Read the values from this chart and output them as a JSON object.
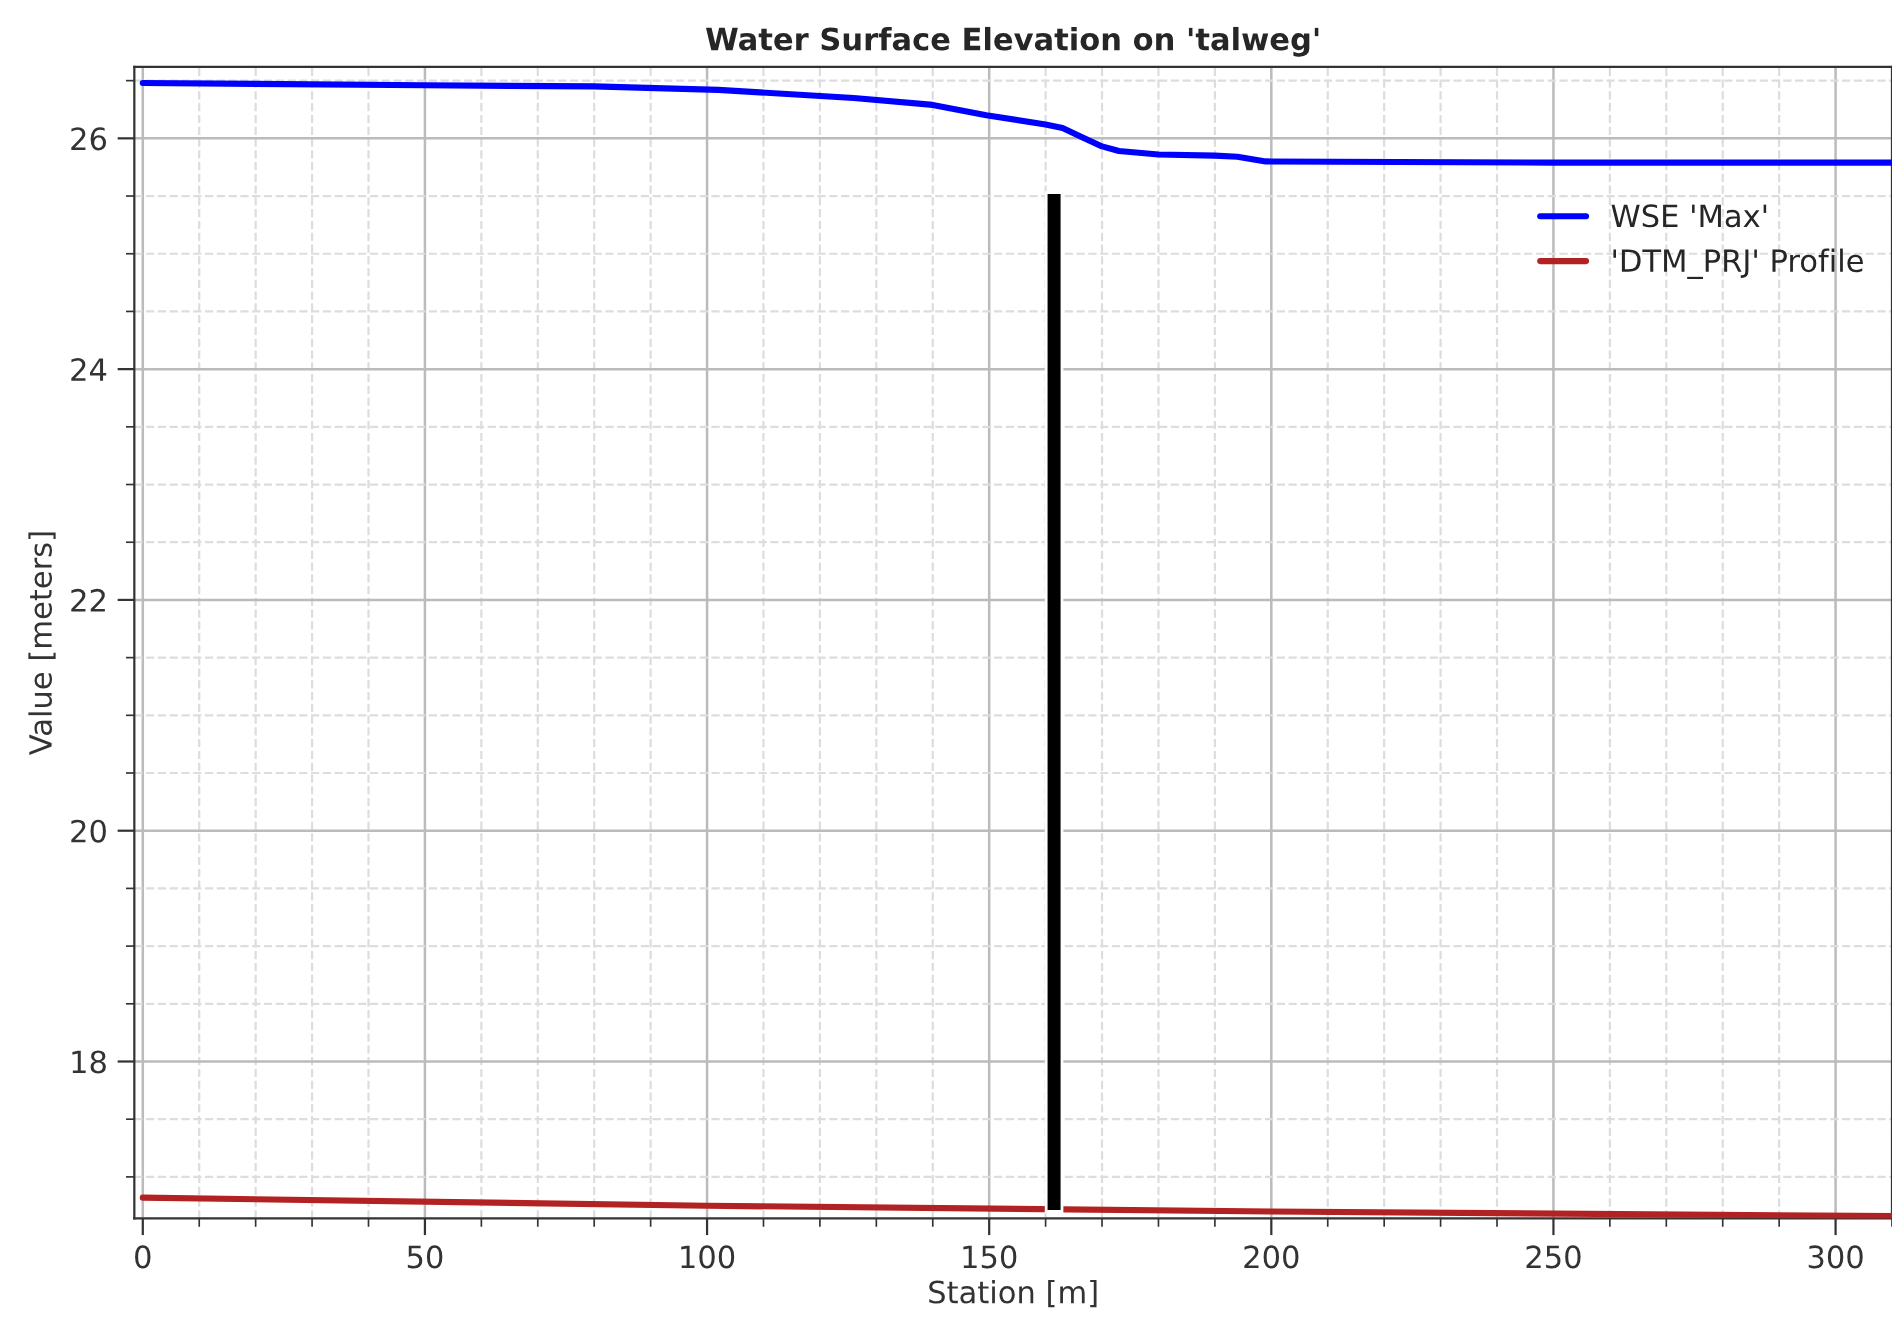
{
  "chart_data": {
    "type": "line",
    "title": "Water Surface Elevation on 'talweg'",
    "xlabel": "Station [m]",
    "ylabel": "Value [meters]",
    "xlim": [
      -1.5,
      310
    ],
    "xticks": [
      0,
      50,
      100,
      150,
      200,
      250,
      300
    ],
    "ylim": [
      16.64,
      26.62
    ],
    "yticks": [
      18,
      20,
      22,
      24,
      26
    ],
    "grid": true,
    "legend": "top right",
    "marker": "none",
    "line_style": "solid",
    "series": [
      {
        "name": "WSE 'Max'",
        "color": "#0000ff",
        "x": [
          0,
          50,
          80,
          102,
          126,
          140,
          149.5,
          160,
          163,
          166,
          170,
          173,
          180,
          190,
          194,
          199,
          250,
          310
        ],
        "values": [
          26.48,
          26.46,
          26.45,
          26.42,
          26.35,
          26.29,
          26.2,
          26.12,
          26.09,
          26.02,
          25.93,
          25.89,
          25.86,
          25.85,
          25.84,
          25.8,
          25.79,
          25.79
        ]
      },
      {
        "name": "'DTM_PRJ' Profile",
        "color": "#b22222",
        "x": [
          0,
          100,
          200,
          310
        ],
        "values": [
          16.82,
          16.75,
          16.7,
          16.66
        ]
      },
      {
        "type": "bar",
        "color": "#000000",
        "x": [
          161.5
        ],
        "base": [
          16.7
        ],
        "values": [
          8.83
        ]
      }
    ]
  }
}
